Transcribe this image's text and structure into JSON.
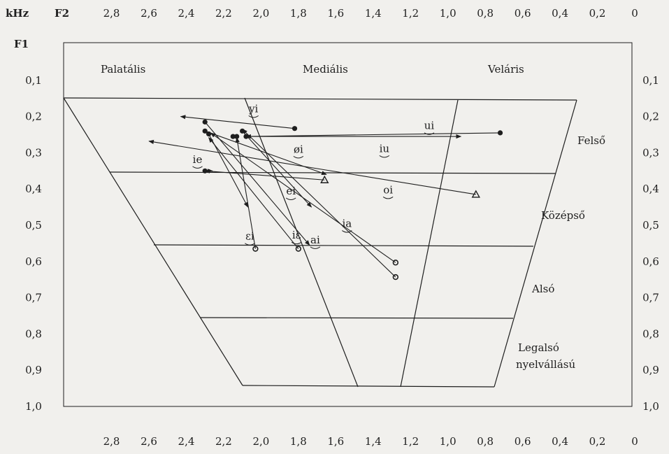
{
  "chart_data": {
    "type": "scatter",
    "units_label": "kHz",
    "x_axis_label": "F2",
    "y_axis_label": "F1",
    "x_ticks": [
      "2,8",
      "2,6",
      "2,4",
      "2,2",
      "2,0",
      "1,8",
      "1,6",
      "1,4",
      "1,2",
      "1,0",
      "0,8",
      "0,6",
      "0,4",
      "0,2",
      "0"
    ],
    "y_ticks": [
      "0,1",
      "0,2",
      "0,3",
      "0,4",
      "0,5",
      "0,6",
      "0,7",
      "0,8",
      "0,9",
      "1,0"
    ],
    "xlim": [
      3.0,
      0
    ],
    "ylim": [
      0,
      1.0
    ],
    "columns": [
      "Palatális",
      "Mediális",
      "Veláris"
    ],
    "rows": [
      "Felső",
      "Középső",
      "Alsó"
    ],
    "row_last": [
      "Legalsó",
      "nyelvállású"
    ],
    "diphthong_labels": [
      {
        "text": "yi",
        "f2": 2.04,
        "f1": 0.188
      },
      {
        "text": "ui",
        "f2": 1.1,
        "f1": 0.235
      },
      {
        "text": "øi",
        "f2": 1.8,
        "f1": 0.3
      },
      {
        "text": "iu",
        "f2": 1.34,
        "f1": 0.298
      },
      {
        "text": "ie",
        "f2": 2.34,
        "f1": 0.328
      },
      {
        "text": "ei",
        "f2": 1.84,
        "f1": 0.415
      },
      {
        "text": "oi",
        "f2": 1.32,
        "f1": 0.412
      },
      {
        "text": "ia",
        "f2": 1.54,
        "f1": 0.505
      },
      {
        "text": "εi",
        "f2": 2.06,
        "f1": 0.54
      },
      {
        "text": "iε",
        "f2": 1.81,
        "f1": 0.537
      },
      {
        "text": "ai",
        "f2": 1.71,
        "f1": 0.55
      }
    ],
    "trajectories": [
      {
        "from": [
          1.82,
          0.233
        ],
        "to": [
          2.43,
          0.2
        ],
        "start": "dot"
      },
      {
        "from": [
          0.72,
          0.245
        ],
        "to": [
          2.08,
          0.255
        ],
        "start": "dot"
      },
      {
        "from": [
          2.08,
          0.255
        ],
        "to": [
          0.93,
          0.255
        ],
        "start": "dot"
      },
      {
        "from": [
          0.85,
          0.415
        ],
        "to": [
          2.6,
          0.268
        ],
        "start": "triangle"
      },
      {
        "from": [
          1.28,
          0.603
        ],
        "to": [
          2.27,
          0.245
        ],
        "start": "circle"
      },
      {
        "from": [
          1.28,
          0.643
        ],
        "to": [
          2.1,
          0.235
        ],
        "start": "circle"
      },
      {
        "from": [
          2.03,
          0.565
        ],
        "to": [
          2.13,
          0.258
        ],
        "start": "circle"
      },
      {
        "from": [
          1.8,
          0.565
        ],
        "to": [
          2.28,
          0.258
        ],
        "start": "circle"
      },
      {
        "from": [
          2.3,
          0.24
        ],
        "to": [
          1.65,
          0.36
        ],
        "start": "dot"
      },
      {
        "from": [
          2.28,
          0.248
        ],
        "to": [
          2.07,
          0.45
        ],
        "start": "dot"
      },
      {
        "from": [
          2.1,
          0.24
        ],
        "to": [
          1.73,
          0.45
        ],
        "start": "dot"
      },
      {
        "from": [
          2.3,
          0.35
        ],
        "to": [
          2.26,
          0.35
        ],
        "start": "dot"
      },
      {
        "from": [
          1.66,
          0.375
        ],
        "to": [
          2.3,
          0.35
        ],
        "start": "triangle"
      },
      {
        "from": [
          2.3,
          0.215
        ],
        "to": [
          1.74,
          0.555
        ],
        "start": "dot"
      }
    ],
    "extra_points": [
      {
        "f2": 2.15,
        "f1": 0.255,
        "marker": "dot"
      },
      {
        "f2": 2.13,
        "f1": 0.255,
        "marker": "dot"
      }
    ]
  }
}
